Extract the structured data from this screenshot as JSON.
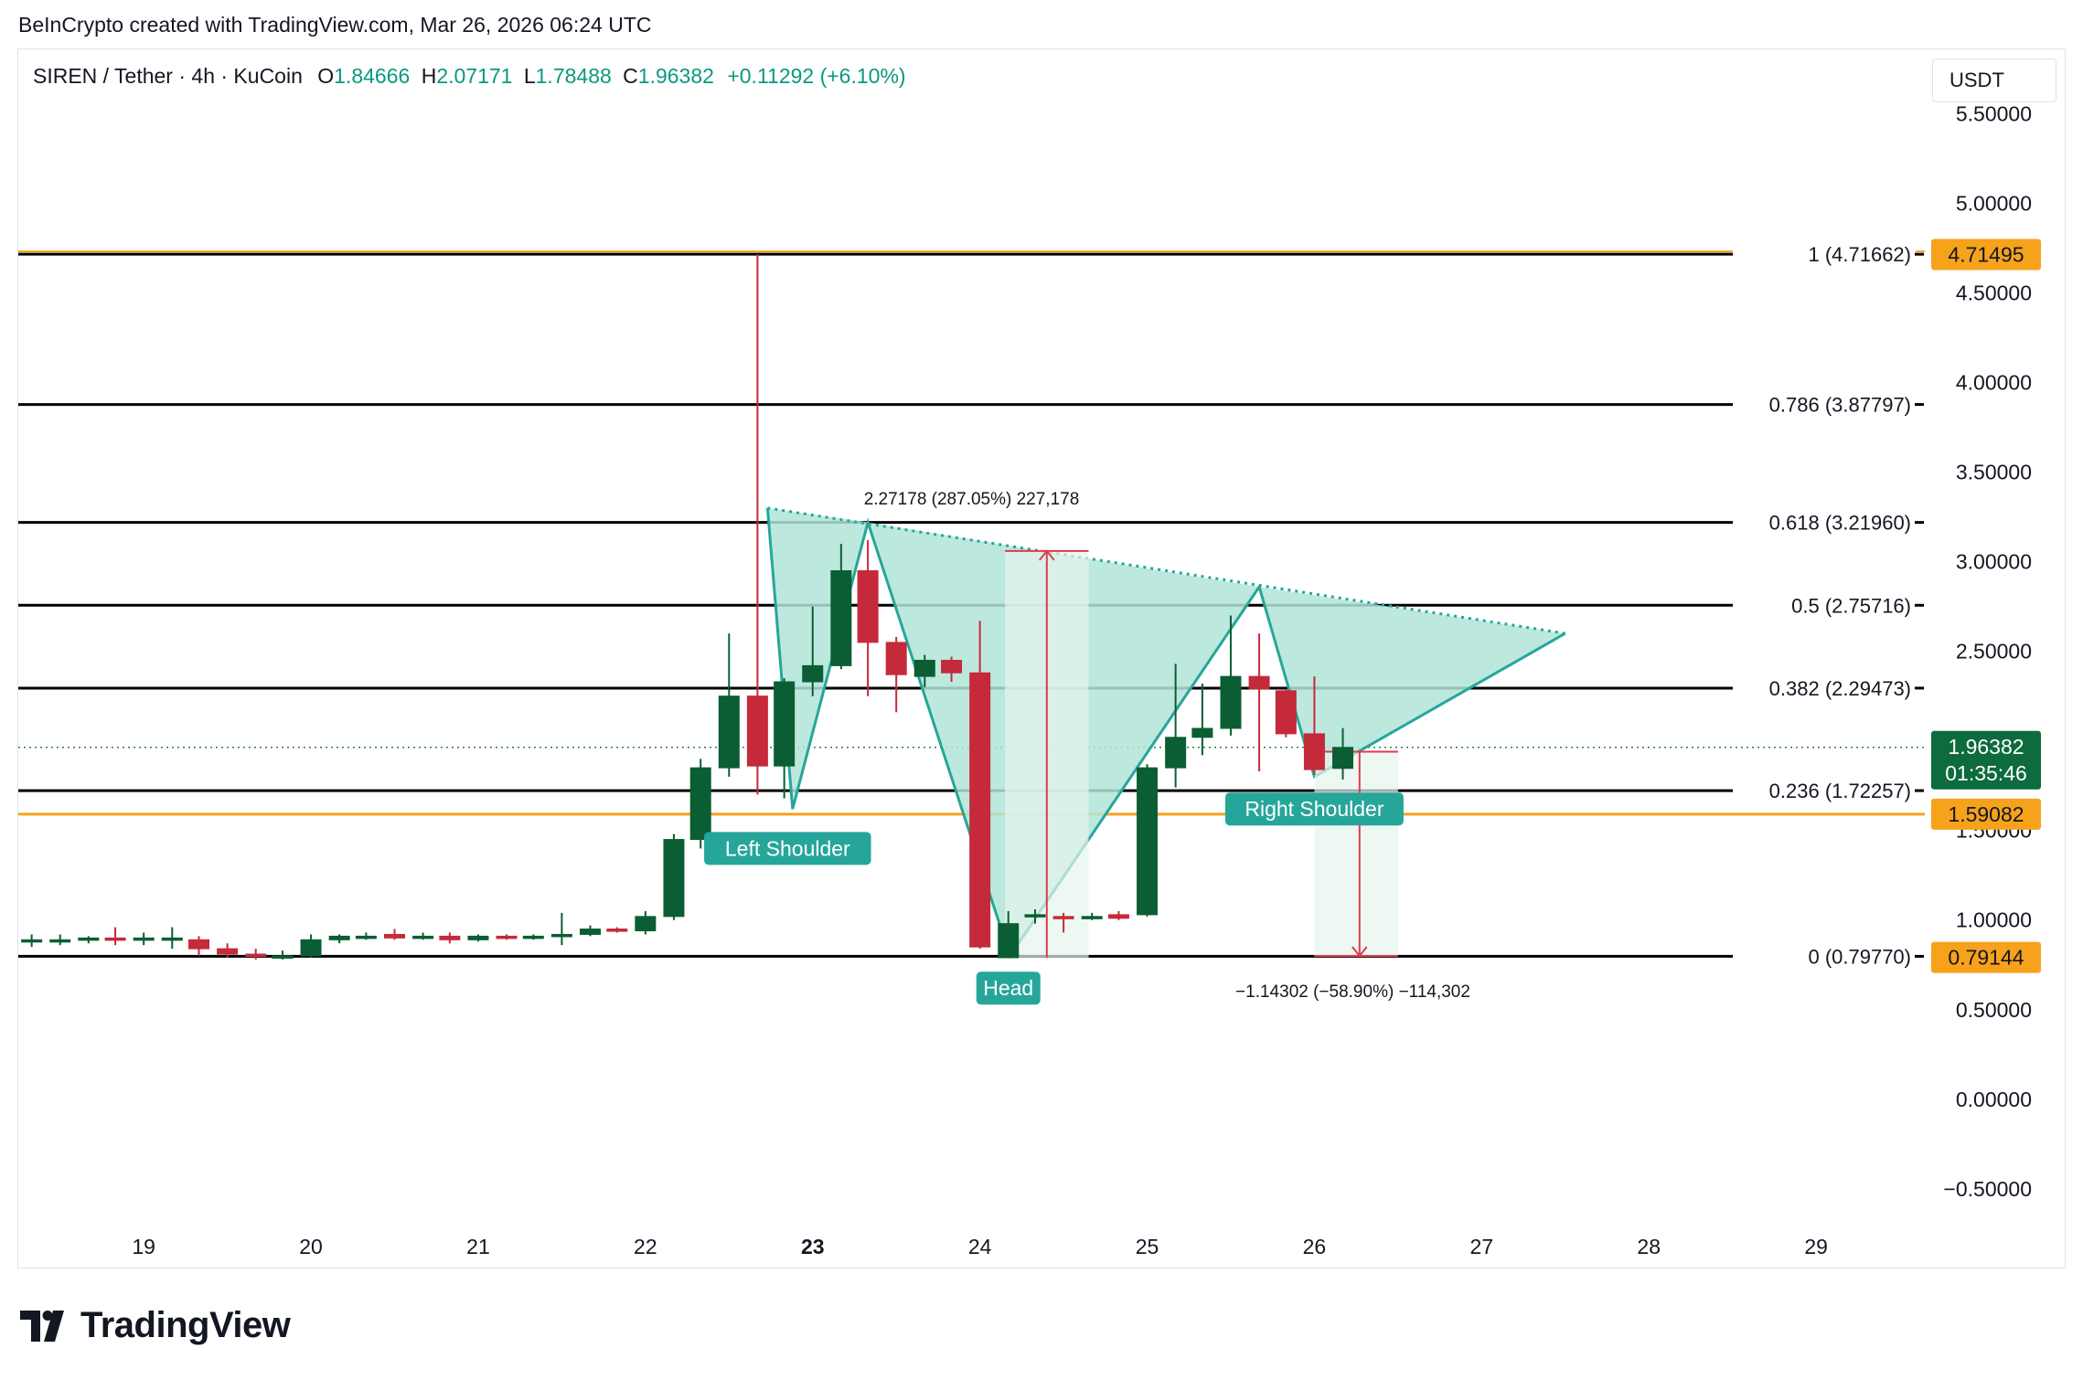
{
  "credit": "BeInCrypto created with TradingView.com, Mar 26, 2026 06:24 UTC",
  "legend": {
    "symbol": "SIREN / Tether · 4h · KuCoin",
    "o_label": "O",
    "o": "1.84666",
    "h_label": "H",
    "h": "2.07171",
    "l_label": "L",
    "l": "1.78488",
    "c_label": "C",
    "c": "1.96382",
    "change": "+0.11292 (+6.10%)"
  },
  "currency": "USDT",
  "brand": "TradingView",
  "colors": {
    "up": "#0b5e33",
    "down": "#c52a3a",
    "fill": "#b2e4d8",
    "fill_stroke": "#26a69a",
    "orange": "#f7a21b",
    "last": "#0d6b3d",
    "label": "#26a69a"
  },
  "chart_data": {
    "type": "candlestick",
    "x_ticks": [
      {
        "label": "19",
        "day": 19
      },
      {
        "label": "20",
        "day": 20
      },
      {
        "label": "21",
        "day": 21
      },
      {
        "label": "22",
        "day": 22
      },
      {
        "label": "23",
        "day": 23
      },
      {
        "label": "24",
        "day": 24
      },
      {
        "label": "25",
        "day": 25
      },
      {
        "label": "26",
        "day": 26
      },
      {
        "label": "27",
        "day": 27
      },
      {
        "label": "28",
        "day": 28
      },
      {
        "label": "29",
        "day": 29
      }
    ],
    "y_ticks": [
      "5.50000",
      "5.00000",
      "4.50000",
      "4.00000",
      "3.50000",
      "3.00000",
      "2.50000",
      "1.50000",
      "1.00000",
      "0.50000",
      "0.00000",
      "−0.50000"
    ],
    "y_tick_values": [
      5.5,
      5.0,
      4.5,
      4.0,
      3.5,
      3.0,
      2.5,
      1.5,
      1.0,
      0.5,
      0.0,
      -0.5
    ],
    "ylim": [
      -0.7,
      5.85
    ],
    "xlim": [
      18.25,
      29.65
    ],
    "candles": [
      {
        "day": 18.33,
        "o": 0.88,
        "h": 0.92,
        "l": 0.85,
        "c": 0.89
      },
      {
        "day": 18.5,
        "o": 0.89,
        "h": 0.92,
        "l": 0.86,
        "c": 0.89
      },
      {
        "day": 18.67,
        "o": 0.89,
        "h": 0.91,
        "l": 0.87,
        "c": 0.9
      },
      {
        "day": 18.83,
        "o": 0.9,
        "h": 0.96,
        "l": 0.86,
        "c": 0.89
      },
      {
        "day": 19.0,
        "o": 0.89,
        "h": 0.93,
        "l": 0.86,
        "c": 0.9
      },
      {
        "day": 19.17,
        "o": 0.89,
        "h": 0.96,
        "l": 0.84,
        "c": 0.9
      },
      {
        "day": 19.33,
        "o": 0.89,
        "h": 0.91,
        "l": 0.8,
        "c": 0.84
      },
      {
        "day": 19.5,
        "o": 0.84,
        "h": 0.87,
        "l": 0.79,
        "c": 0.81
      },
      {
        "day": 19.67,
        "o": 0.81,
        "h": 0.84,
        "l": 0.78,
        "c": 0.8
      },
      {
        "day": 19.83,
        "o": 0.8,
        "h": 0.83,
        "l": 0.78,
        "c": 0.8
      },
      {
        "day": 20.0,
        "o": 0.8,
        "h": 0.92,
        "l": 0.79,
        "c": 0.89
      },
      {
        "day": 20.17,
        "o": 0.89,
        "h": 0.92,
        "l": 0.87,
        "c": 0.91
      },
      {
        "day": 20.33,
        "o": 0.9,
        "h": 0.93,
        "l": 0.89,
        "c": 0.91
      },
      {
        "day": 20.5,
        "o": 0.92,
        "h": 0.95,
        "l": 0.89,
        "c": 0.9
      },
      {
        "day": 20.67,
        "o": 0.9,
        "h": 0.93,
        "l": 0.89,
        "c": 0.91
      },
      {
        "day": 20.83,
        "o": 0.91,
        "h": 0.93,
        "l": 0.87,
        "c": 0.89
      },
      {
        "day": 21.0,
        "o": 0.89,
        "h": 0.92,
        "l": 0.88,
        "c": 0.91
      },
      {
        "day": 21.17,
        "o": 0.91,
        "h": 0.92,
        "l": 0.89,
        "c": 0.9
      },
      {
        "day": 21.33,
        "o": 0.9,
        "h": 0.92,
        "l": 0.89,
        "c": 0.91
      },
      {
        "day": 21.5,
        "o": 0.91,
        "h": 1.04,
        "l": 0.86,
        "c": 0.92
      },
      {
        "day": 21.67,
        "o": 0.92,
        "h": 0.97,
        "l": 0.91,
        "c": 0.95
      },
      {
        "day": 21.83,
        "o": 0.95,
        "h": 0.96,
        "l": 0.93,
        "c": 0.94
      },
      {
        "day": 22.0,
        "o": 0.94,
        "h": 1.05,
        "l": 0.92,
        "c": 1.02
      },
      {
        "day": 22.17,
        "o": 1.02,
        "h": 1.48,
        "l": 1.0,
        "c": 1.45
      },
      {
        "day": 22.33,
        "o": 1.45,
        "h": 1.9,
        "l": 1.4,
        "c": 1.85
      },
      {
        "day": 22.5,
        "o": 1.85,
        "h": 2.6,
        "l": 1.8,
        "c": 2.25
      },
      {
        "day": 22.67,
        "o": 2.25,
        "h": 4.71662,
        "l": 1.7,
        "c": 1.86
      },
      {
        "day": 22.83,
        "o": 1.86,
        "h": 2.35,
        "l": 1.68,
        "c": 2.33
      },
      {
        "day": 23.0,
        "o": 2.33,
        "h": 2.75,
        "l": 2.25,
        "c": 2.42
      },
      {
        "day": 23.17,
        "o": 2.42,
        "h": 3.1,
        "l": 2.4,
        "c": 2.95
      },
      {
        "day": 23.33,
        "o": 2.95,
        "h": 3.12,
        "l": 2.25,
        "c": 2.55
      },
      {
        "day": 23.5,
        "o": 2.55,
        "h": 2.58,
        "l": 2.16,
        "c": 2.37
      },
      {
        "day": 23.67,
        "o": 2.36,
        "h": 2.48,
        "l": 2.3,
        "c": 2.45
      },
      {
        "day": 23.83,
        "o": 2.45,
        "h": 2.47,
        "l": 2.33,
        "c": 2.38
      },
      {
        "day": 24.0,
        "o": 2.38,
        "h": 2.67,
        "l": 0.84,
        "c": 0.85
      },
      {
        "day": 24.17,
        "o": 0.79,
        "h": 1.05,
        "l": 0.79144,
        "c": 0.98
      },
      {
        "day": 24.33,
        "o": 1.02,
        "h": 1.06,
        "l": 0.98,
        "c": 1.03
      },
      {
        "day": 24.5,
        "o": 1.02,
        "h": 1.04,
        "l": 0.93,
        "c": 1.01
      },
      {
        "day": 24.67,
        "o": 1.02,
        "h": 1.04,
        "l": 1.0,
        "c": 1.02
      },
      {
        "day": 24.83,
        "o": 1.03,
        "h": 1.05,
        "l": 1.0,
        "c": 1.01
      },
      {
        "day": 25.0,
        "o": 1.03,
        "h": 1.87,
        "l": 1.02,
        "c": 1.85
      },
      {
        "day": 25.17,
        "o": 1.85,
        "h": 2.43,
        "l": 1.74,
        "c": 2.02
      },
      {
        "day": 25.33,
        "o": 2.02,
        "h": 2.32,
        "l": 1.92,
        "c": 2.07
      },
      {
        "day": 25.5,
        "o": 2.07,
        "h": 2.7,
        "l": 2.03,
        "c": 2.36
      },
      {
        "day": 25.67,
        "o": 2.36,
        "h": 2.6,
        "l": 1.83,
        "c": 2.29
      },
      {
        "day": 25.83,
        "o": 2.28,
        "h": 2.29,
        "l": 2.02,
        "c": 2.04
      },
      {
        "day": 26.0,
        "o": 2.04,
        "h": 2.36,
        "l": 1.81,
        "c": 1.84
      },
      {
        "day": 26.17,
        "o": 1.84666,
        "h": 2.07171,
        "l": 1.78488,
        "c": 1.96382
      }
    ],
    "fib_levels": [
      {
        "label": "1 (4.71662)",
        "value": 4.71662,
        "color": "#f7a21b"
      },
      {
        "label": "0.786 (3.87797)",
        "value": 3.87797,
        "color": "#000000"
      },
      {
        "label": "0.618 (3.21960)",
        "value": 3.2196,
        "color": "#000000"
      },
      {
        "label": "0.5 (2.75716)",
        "value": 2.75716,
        "color": "#000000"
      },
      {
        "label": "0.382 (2.29473)",
        "value": 2.29473,
        "color": "#000000"
      },
      {
        "label": "0.236 (1.72257)",
        "value": 1.72257,
        "color": "#000000"
      },
      {
        "label": "0 (0.79770)",
        "value": 0.7977,
        "color": "#000000"
      }
    ],
    "orange_line": 1.59082,
    "last_price": 1.96382,
    "price_badges": [
      {
        "text": "4.71495",
        "value": 4.71495,
        "kind": "orange"
      },
      {
        "text": "1.59082",
        "value": 1.59082,
        "kind": "orange"
      },
      {
        "text": "0.79144",
        "value": 0.79144,
        "kind": "orange"
      }
    ],
    "last_badge": {
      "price": "1.96382",
      "countdown": "01:35:46"
    },
    "pattern_points": [
      {
        "day": 22.73,
        "price": 3.3
      },
      {
        "day": 22.88,
        "price": 1.62
      },
      {
        "day": 23.33,
        "price": 3.22
      },
      {
        "day": 24.18,
        "price": 0.8
      },
      {
        "day": 25.67,
        "price": 2.86
      },
      {
        "day": 26.0,
        "price": 1.8
      },
      {
        "day": 27.5,
        "price": 2.6
      }
    ],
    "pattern_labels": [
      {
        "text": "Left Shoulder",
        "day": 22.85,
        "price": 1.4
      },
      {
        "text": "Head",
        "day": 24.17,
        "price": 0.62
      },
      {
        "text": "Right Shoulder",
        "day": 26.0,
        "price": 1.62
      }
    ],
    "measure_up": {
      "text": "2.27178 (287.05%) 227,178",
      "x_day": 24.4,
      "from": 0.79,
      "to": 3.06,
      "box_from": 24.15,
      "box_to": 24.65,
      "text_day": 23.95,
      "text_price": 3.32
    },
    "measure_down": {
      "text": "−1.14302 (−58.90%) −114,302",
      "x_day": 26.27,
      "from": 1.94,
      "to": 0.8,
      "box_from": 26.0,
      "box_to": 26.5,
      "text_day": 26.23,
      "text_price": 0.57
    }
  }
}
